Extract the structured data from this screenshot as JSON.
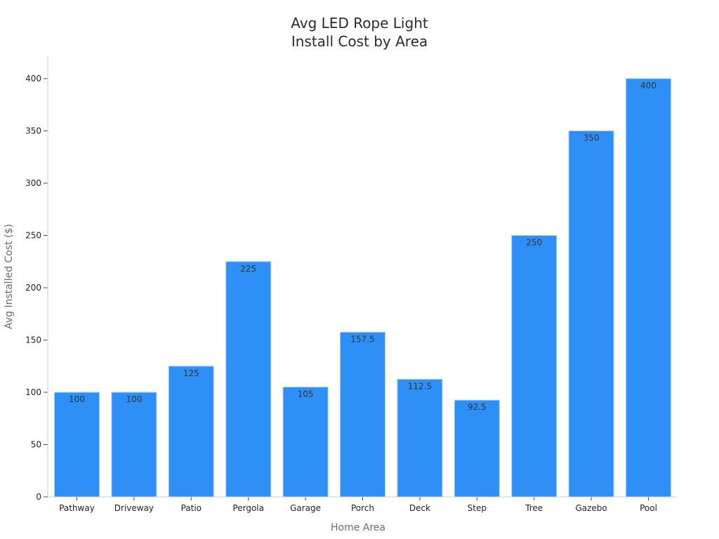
{
  "chart_data": {
    "type": "bar",
    "title": [
      "Avg LED Rope Light",
      "Install Cost by Area"
    ],
    "xlabel": "Home Area",
    "ylabel": "Avg Installed Cost ($)",
    "categories": [
      "Pathway",
      "Driveway",
      "Patio",
      "Pergola",
      "Garage",
      "Porch",
      "Deck",
      "Step",
      "Tree",
      "Gazebo",
      "Pool"
    ],
    "values": [
      100,
      100,
      125,
      225,
      105,
      157.5,
      112.5,
      92.5,
      250,
      350,
      400
    ],
    "ylim": [
      0,
      420
    ],
    "yticks": [
      0,
      50,
      100,
      150,
      200,
      250,
      300,
      350,
      400
    ],
    "bar_color": "#2e90f7",
    "bar_edge_color": "#a9cdf6",
    "grid": false,
    "legend": "none"
  }
}
